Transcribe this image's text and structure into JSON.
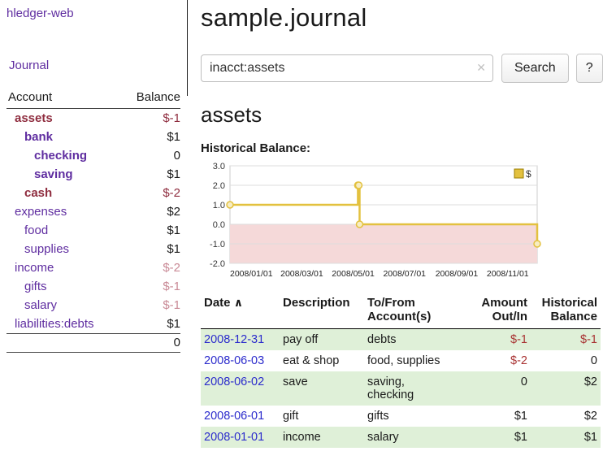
{
  "colors": {
    "purple": "#5f2da0",
    "maroon": "#8f2d3f",
    "faded-red": "#c98a96",
    "table-red": "#a93434",
    "link-blue": "#2b2bcc",
    "row-green": "#dff0d8",
    "chart-pink": "#f5d9d9",
    "chart-gold": "#e3c13f",
    "chart-gold-fill": "#f7edc2",
    "grid-gray": "#dddddd",
    "text": "#1a1a1a"
  },
  "app": {
    "title": "hledger-web"
  },
  "sidebar": {
    "journal_label": "Journal",
    "accounts": {
      "header_account": "Account",
      "header_balance": "Balance",
      "rows": [
        {
          "name": "assets",
          "indent": 1,
          "bold": true,
          "name_neg": true,
          "balance": "$-1"
        },
        {
          "name": "bank",
          "indent": 2,
          "bold": true,
          "name_neg": false,
          "balance": "$1"
        },
        {
          "name": "checking",
          "indent": 3,
          "bold": true,
          "name_neg": false,
          "balance": "0"
        },
        {
          "name": "saving",
          "indent": 3,
          "bold": true,
          "name_neg": false,
          "balance": "$1"
        },
        {
          "name": "cash",
          "indent": 2,
          "bold": true,
          "name_neg": true,
          "balance": "$-2"
        },
        {
          "name": "expenses",
          "indent": 1,
          "bold": false,
          "name_neg": false,
          "balance": "$2"
        },
        {
          "name": "food",
          "indent": 2,
          "bold": false,
          "name_neg": false,
          "balance": "$1"
        },
        {
          "name": "supplies",
          "indent": 2,
          "bold": false,
          "name_neg": false,
          "balance": "$1"
        },
        {
          "name": "income",
          "indent": 1,
          "bold": false,
          "name_neg": false,
          "balance": "$-2"
        },
        {
          "name": "gifts",
          "indent": 2,
          "bold": false,
          "name_neg": false,
          "balance": "$-1"
        },
        {
          "name": "salary",
          "indent": 2,
          "bold": false,
          "name_neg": false,
          "balance": "$-1"
        },
        {
          "name": "liabilities:debts",
          "indent": 1,
          "bold": false,
          "name_neg": false,
          "balance": "$1"
        }
      ],
      "total": "0"
    }
  },
  "main": {
    "title": "sample.journal",
    "search": {
      "value": "inacct:assets",
      "clear_icon": "✕",
      "button_label": "Search",
      "help_label": "?"
    },
    "account_heading": "assets"
  },
  "chart_data": {
    "type": "line",
    "title": "Historical Balance:",
    "step": true,
    "x_type": "date",
    "x_range": [
      "2008-01-01",
      "2008-12-31"
    ],
    "ylim": [
      -2,
      3
    ],
    "yticks": [
      "3.0",
      "2.0",
      "1.0",
      "0.0",
      "-1.0",
      "-2.0"
    ],
    "xticks": [
      "2008/01/01",
      "2008/03/01",
      "2008/05/01",
      "2008/07/01",
      "2008/09/01",
      "2008/11/01"
    ],
    "series": [
      {
        "name": "$",
        "points": [
          [
            "2008-01-01",
            1.0
          ],
          [
            "2008-06-01",
            2.0
          ],
          [
            "2008-06-02",
            2.0
          ],
          [
            "2008-06-03",
            0.0
          ],
          [
            "2008-12-31",
            -1.0
          ]
        ]
      }
    ],
    "legend": {
      "label": "$",
      "position": "top-right"
    },
    "negative_region_shaded": true,
    "grid": true
  },
  "txns": {
    "headers": {
      "date": "Date",
      "description": "Description",
      "accounts": "To/From\nAccount(s)",
      "amount": "Amount\nOut/In",
      "balance": "Historical\nBalance"
    },
    "sort_icon": "∧",
    "rows": [
      {
        "date": "2008-12-31",
        "description": "pay off",
        "accounts": "debts",
        "amount": "$-1",
        "balance": "$-1"
      },
      {
        "date": "2008-06-03",
        "description": "eat & shop",
        "accounts": "food, supplies",
        "amount": "$-2",
        "balance": "0"
      },
      {
        "date": "2008-06-02",
        "description": "save",
        "accounts": "saving,\nchecking",
        "amount": "0",
        "balance": "$2"
      },
      {
        "date": "2008-06-01",
        "description": "gift",
        "accounts": "gifts",
        "amount": "$1",
        "balance": "$2"
      },
      {
        "date": "2008-01-01",
        "description": "income",
        "accounts": "salary",
        "amount": "$1",
        "balance": "$1"
      }
    ]
  }
}
